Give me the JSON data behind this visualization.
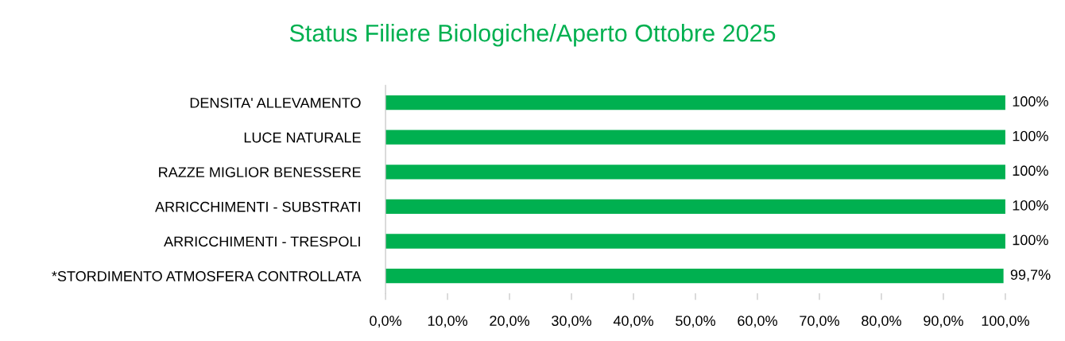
{
  "chart_data": {
    "type": "bar",
    "orientation": "horizontal",
    "title": "Status Filiere Biologiche/Aperto Ottobre 2025",
    "categories": [
      "DENSITA' ALLEVAMENTO",
      "LUCE NATURALE",
      "RAZZE MIGLIOR BENESSERE",
      "ARRICCHIMENTI - SUBSTRATI",
      "ARRICCHIMENTI - TRESPOLI",
      "*STORDIMENTO ATMOSFERA CONTROLLATA"
    ],
    "values": [
      100,
      100,
      100,
      100,
      100,
      99.7
    ],
    "value_labels": [
      "100%",
      "100%",
      "100%",
      "100%",
      "100%",
      "99,7%"
    ],
    "color": "#00b050",
    "xlim": [
      0,
      100
    ],
    "xticks": [
      {
        "value": 0,
        "label": "0,0%"
      },
      {
        "value": 10,
        "label": "10,0%"
      },
      {
        "value": 20,
        "label": "20,0%"
      },
      {
        "value": 30,
        "label": "30,0%"
      },
      {
        "value": 40,
        "label": "40,0%"
      },
      {
        "value": 50,
        "label": "50,0%"
      },
      {
        "value": 60,
        "label": "60,0%"
      },
      {
        "value": 70,
        "label": "70,0%"
      },
      {
        "value": 80,
        "label": "80,0%"
      },
      {
        "value": 90,
        "label": "90,0%"
      },
      {
        "value": 100,
        "label": "100,0%"
      }
    ],
    "grid": false,
    "legend": false
  }
}
